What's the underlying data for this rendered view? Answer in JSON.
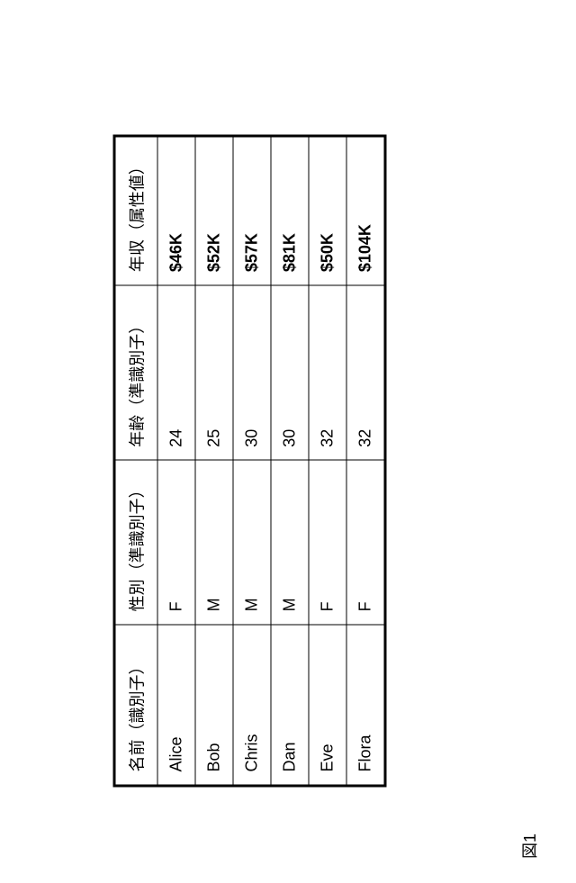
{
  "figure_label": "図1",
  "table": {
    "columns": [
      {
        "label": "名前（識別子）",
        "class": "col-name"
      },
      {
        "label": "性別（準識別子）",
        "class": "col-gender"
      },
      {
        "label": "年齢（準識別子）",
        "class": "col-age"
      },
      {
        "label": "年収（属性値）",
        "class": "col-salary"
      }
    ],
    "rows": [
      {
        "name": "Alice",
        "gender": "F",
        "age": "24",
        "salary": "$46K"
      },
      {
        "name": "Bob",
        "gender": "M",
        "age": "25",
        "salary": "$52K"
      },
      {
        "name": "Chris",
        "gender": "M",
        "age": "30",
        "salary": "$57K"
      },
      {
        "name": "Dan",
        "gender": "M",
        "age": "30",
        "salary": "$81K"
      },
      {
        "name": "Eve",
        "gender": "F",
        "age": "32",
        "salary": "$50K"
      },
      {
        "name": "Flora",
        "gender": "F",
        "age": "32",
        "salary": "$104K"
      }
    ]
  }
}
